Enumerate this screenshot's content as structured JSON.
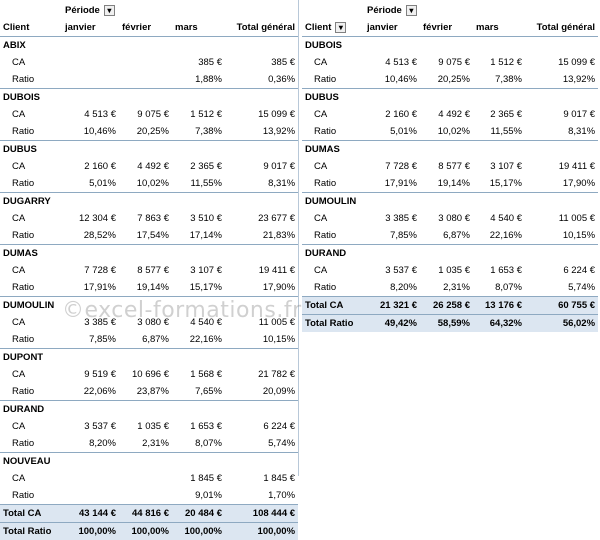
{
  "left": {
    "periode_label": "Période",
    "headers": {
      "client": "Client",
      "cols": [
        "janvier",
        "février",
        "mars",
        "Total général"
      ]
    },
    "groups": [
      {
        "name": "ABIX",
        "ca": [
          "",
          "",
          "385 €",
          "385 €"
        ],
        "ratio": [
          "",
          "",
          "1,88%",
          "0,36%"
        ]
      },
      {
        "name": "DUBOIS",
        "ca": [
          "4 513 €",
          "9 075 €",
          "1 512 €",
          "15 099 €"
        ],
        "ratio": [
          "10,46%",
          "20,25%",
          "7,38%",
          "13,92%"
        ]
      },
      {
        "name": "DUBUS",
        "ca": [
          "2 160 €",
          "4 492 €",
          "2 365 €",
          "9 017 €"
        ],
        "ratio": [
          "5,01%",
          "10,02%",
          "11,55%",
          "8,31%"
        ]
      },
      {
        "name": "DUGARRY",
        "ca": [
          "12 304 €",
          "7 863 €",
          "3 510 €",
          "23 677 €"
        ],
        "ratio": [
          "28,52%",
          "17,54%",
          "17,14%",
          "21,83%"
        ]
      },
      {
        "name": "DUMAS",
        "ca": [
          "7 728 €",
          "8 577 €",
          "3 107 €",
          "19 411 €"
        ],
        "ratio": [
          "17,91%",
          "19,14%",
          "15,17%",
          "17,90%"
        ]
      },
      {
        "name": "DUMOULIN",
        "ca": [
          "3 385 €",
          "3 080 €",
          "4 540 €",
          "11 005 €"
        ],
        "ratio": [
          "7,85%",
          "6,87%",
          "22,16%",
          "10,15%"
        ]
      },
      {
        "name": "DUPONT",
        "ca": [
          "9 519 €",
          "10 696 €",
          "1 568 €",
          "21 782 €"
        ],
        "ratio": [
          "22,06%",
          "23,87%",
          "7,65%",
          "20,09%"
        ]
      },
      {
        "name": "DURAND",
        "ca": [
          "3 537 €",
          "1 035 €",
          "1 653 €",
          "6 224 €"
        ],
        "ratio": [
          "8,20%",
          "2,31%",
          "8,07%",
          "5,74%"
        ]
      },
      {
        "name": "NOUVEAU",
        "ca": [
          "",
          "",
          "1 845 €",
          "1 845 €"
        ],
        "ratio": [
          "",
          "",
          "9,01%",
          "1,70%"
        ]
      }
    ],
    "measures": {
      "ca": "CA",
      "ratio": "Ratio"
    },
    "total_ca": {
      "label": "Total CA",
      "values": [
        "43 144 €",
        "44 816 €",
        "20 484 €",
        "108 444 €"
      ]
    },
    "total_ratio": {
      "label": "Total Ratio",
      "values": [
        "100,00%",
        "100,00%",
        "100,00%",
        "100,00%"
      ]
    }
  },
  "right": {
    "periode_label": "Période",
    "headers": {
      "client": "Client",
      "cols": [
        "janvier",
        "février",
        "mars",
        "Total général"
      ]
    },
    "groups": [
      {
        "name": "DUBOIS",
        "ca": [
          "4 513 €",
          "9 075 €",
          "1 512 €",
          "15 099 €"
        ],
        "ratio": [
          "10,46%",
          "20,25%",
          "7,38%",
          "13,92%"
        ]
      },
      {
        "name": "DUBUS",
        "ca": [
          "2 160 €",
          "4 492 €",
          "2 365 €",
          "9 017 €"
        ],
        "ratio": [
          "5,01%",
          "10,02%",
          "11,55%",
          "8,31%"
        ]
      },
      {
        "name": "DUMAS",
        "ca": [
          "7 728 €",
          "8 577 €",
          "3 107 €",
          "19 411 €"
        ],
        "ratio": [
          "17,91%",
          "19,14%",
          "15,17%",
          "17,90%"
        ]
      },
      {
        "name": "DUMOULIN",
        "ca": [
          "3 385 €",
          "3 080 €",
          "4 540 €",
          "11 005 €"
        ],
        "ratio": [
          "7,85%",
          "6,87%",
          "22,16%",
          "10,15%"
        ]
      },
      {
        "name": "DURAND",
        "ca": [
          "3 537 €",
          "1 035 €",
          "1 653 €",
          "6 224 €"
        ],
        "ratio": [
          "8,20%",
          "2,31%",
          "8,07%",
          "5,74%"
        ]
      }
    ],
    "measures": {
      "ca": "CA",
      "ratio": "Ratio"
    },
    "total_ca": {
      "label": "Total CA",
      "values": [
        "21 321 €",
        "26 258 €",
        "13 176 €",
        "60 755 €"
      ]
    },
    "total_ratio": {
      "label": "Total Ratio",
      "values": [
        "49,42%",
        "58,59%",
        "64,32%",
        "56,02%"
      ]
    }
  },
  "watermark": "©excel-formations.fr"
}
